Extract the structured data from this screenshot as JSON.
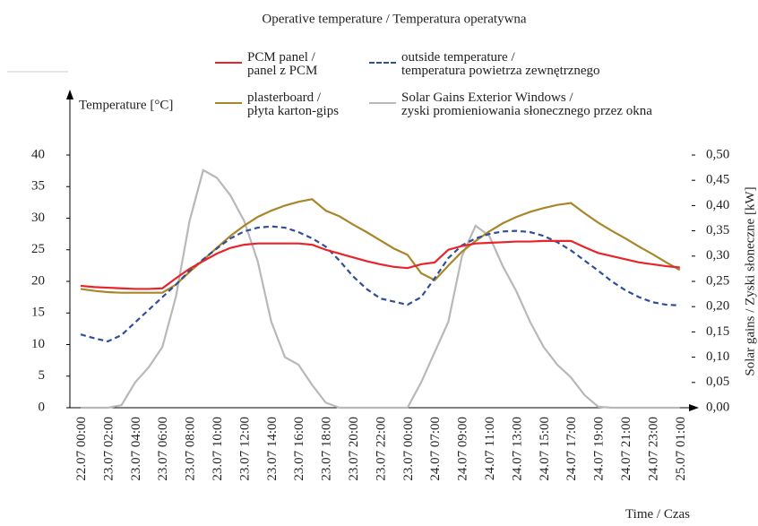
{
  "chart_data": {
    "type": "line",
    "title": "Operative temperature / Temperatura operatywna",
    "y_label": "Temperature [°C]",
    "y2_label": "Solar gains / Zyski słoneczne [kW]",
    "x_label": "Time / Czas",
    "categories": [
      "22.07 00:00",
      null,
      "23.07 02:00",
      null,
      "23.07 04:00",
      null,
      "23.07 06:00",
      null,
      "23.07 08:00",
      null,
      "23.07 10:00",
      null,
      "23.07 12:00",
      null,
      "23.07 14:00",
      null,
      "23.07 16:00",
      null,
      "23.07 18:00",
      null,
      "23.07 20:00",
      null,
      "23.07 22:00",
      null,
      "23.07 00:00",
      null,
      "24.07 07:00",
      null,
      "24.07 09:00",
      null,
      "24.07 11:00",
      null,
      "24.07 13:00",
      null,
      "24.07 15:00",
      null,
      "24.07 17:00",
      null,
      "24.07 19:00",
      null,
      "24.07 21:00",
      null,
      "24.07 23:00",
      null,
      "25.07 01:00"
    ],
    "series": [
      {
        "name": "PCM panel /\npanel z PCM",
        "color": "#e8242a",
        "dash": false,
        "values": [
          19.3,
          19.1,
          19.0,
          18.9,
          18.8,
          18.8,
          18.9,
          20.5,
          22.0,
          23.2,
          24.4,
          25.3,
          25.8,
          26.0,
          26.0,
          26.0,
          26.0,
          25.8,
          25.0,
          24.4,
          23.8,
          23.2,
          22.7,
          22.3,
          22.1,
          22.7,
          23.0,
          25.0,
          25.6,
          26.0,
          26.1,
          26.2,
          26.3,
          26.3,
          26.4,
          26.4,
          26.4,
          25.4,
          24.5,
          24.0,
          23.5,
          23.0,
          22.7,
          22.4,
          22.2
        ]
      },
      {
        "name": "outside temperature /\ntemperatura powietrza zewnętrznego",
        "color": "#2f4f9a",
        "dash": true,
        "values": [
          11.6,
          11.0,
          10.5,
          11.5,
          13.5,
          15.5,
          17.5,
          19.5,
          21.7,
          23.5,
          25.2,
          26.8,
          27.9,
          28.5,
          28.7,
          28.5,
          27.8,
          26.8,
          25.5,
          23.3,
          20.8,
          18.8,
          17.3,
          16.8,
          16.3,
          17.5,
          20.5,
          23.7,
          25.7,
          26.8,
          27.5,
          27.9,
          28.0,
          27.8,
          27.2,
          26.2,
          24.9,
          23.3,
          21.7,
          20.0,
          18.6,
          17.5,
          16.7,
          16.3,
          16.2
        ]
      },
      {
        "name": "plasterboard /\npłyta karton-gips",
        "color": "#a8872a",
        "dash": false,
        "values": [
          18.8,
          18.5,
          18.3,
          18.2,
          18.2,
          18.2,
          18.2,
          19.5,
          21.5,
          23.4,
          25.3,
          27.2,
          28.8,
          30.2,
          31.2,
          32.0,
          32.6,
          33.0,
          31.2,
          30.3,
          29.0,
          27.8,
          26.5,
          25.2,
          24.2,
          21.3,
          20.2,
          22.5,
          24.7,
          26.4,
          27.9,
          29.2,
          30.2,
          31.0,
          31.6,
          32.1,
          32.4,
          30.8,
          29.3,
          28.0,
          26.8,
          25.5,
          24.3,
          23.0,
          21.8
        ]
      },
      {
        "name": "Solar Gains Exterior Windows /\nzyski promieniowania słonecznego przez okna",
        "color": "#b8b8b8",
        "dash": false,
        "axis": "y2",
        "values": [
          0,
          0,
          0,
          0.005,
          0.05,
          0.08,
          0.12,
          0.22,
          0.37,
          0.47,
          0.455,
          0.42,
          0.37,
          0.29,
          0.17,
          0.1,
          0.085,
          0.045,
          0.01,
          0,
          0,
          0,
          0,
          0,
          0,
          0.05,
          0.11,
          0.17,
          0.3,
          0.36,
          0.34,
          0.28,
          0.23,
          0.17,
          0.12,
          0.085,
          0.06,
          0.025,
          0.002,
          0,
          0,
          0,
          0,
          0,
          0
        ]
      }
    ],
    "ylim": [
      0,
      40
    ],
    "yticks": [
      0,
      5,
      10,
      15,
      20,
      25,
      30,
      35,
      40
    ],
    "y2lim": [
      0,
      0.5
    ],
    "y2ticks": [
      {
        "value": 0,
        "label": "0,00"
      },
      {
        "value": 0.05,
        "label": "0,05"
      },
      {
        "value": 0.1,
        "label": "0,10"
      },
      {
        "value": 0.15,
        "label": "0,15"
      },
      {
        "value": 0.2,
        "label": "0,20"
      },
      {
        "value": 0.25,
        "label": "0,25"
      },
      {
        "value": 0.3,
        "label": "0,30"
      },
      {
        "value": 0.35,
        "label": "0,35"
      },
      {
        "value": 0.4,
        "label": "0,40"
      },
      {
        "value": 0.45,
        "label": "0,45"
      },
      {
        "value": 0.5,
        "label": "0,50"
      }
    ],
    "grid": false
  }
}
